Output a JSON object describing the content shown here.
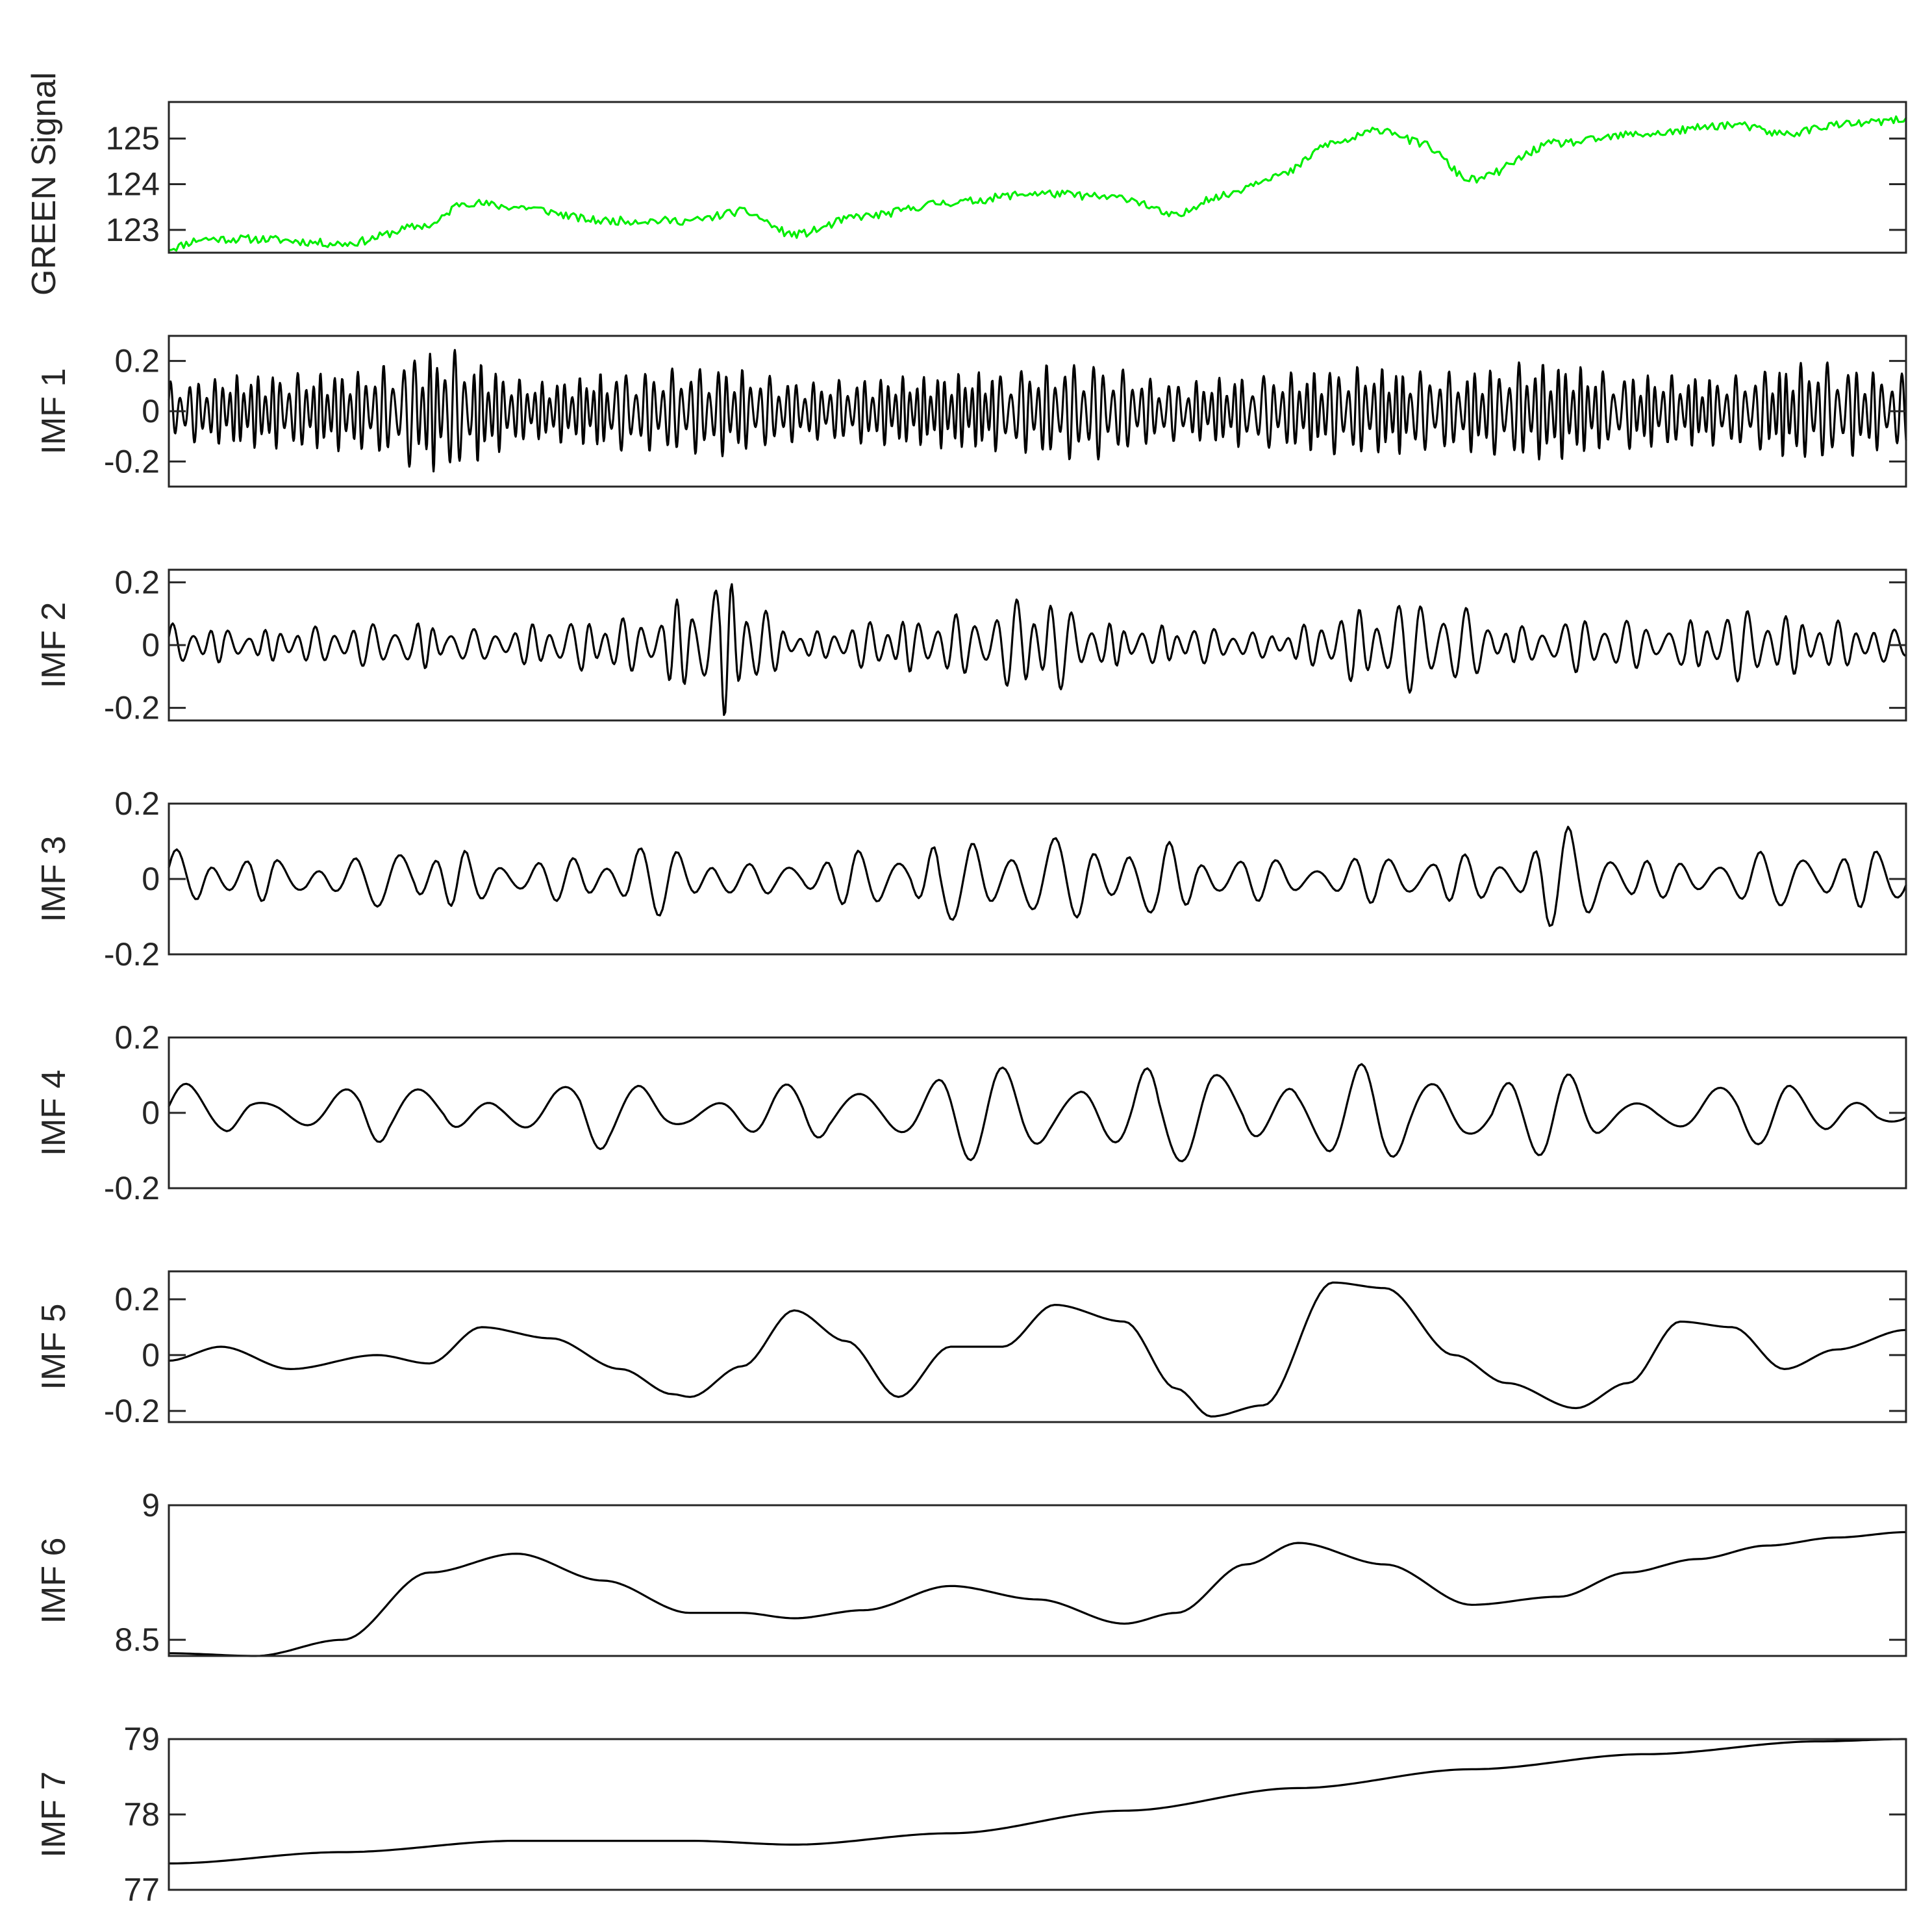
{
  "chart_data": [
    {
      "type": "line",
      "ylabel": "GREEN Signal",
      "ylim": [
        122.5,
        125.8
      ],
      "yticks": [
        123,
        124,
        125
      ],
      "ytick_labels": [
        "123",
        "124",
        "125"
      ],
      "x": [
        0,
        0.02,
        0.05,
        0.1,
        0.15,
        0.17,
        0.2,
        0.25,
        0.3,
        0.33,
        0.36,
        0.4,
        0.45,
        0.5,
        0.55,
        0.58,
        0.6,
        0.64,
        0.67,
        0.7,
        0.72,
        0.75,
        0.8,
        0.85,
        0.9,
        0.93,
        0.96,
        1
      ],
      "values": [
        122.6,
        122.8,
        122.8,
        122.7,
        123.1,
        123.6,
        123.5,
        123.2,
        123.2,
        123.4,
        122.9,
        123.3,
        123.6,
        123.8,
        123.7,
        123.3,
        123.7,
        124.2,
        124.9,
        125.2,
        124.9,
        124.1,
        124.9,
        125.1,
        125.3,
        125.1,
        125.3,
        125.4
      ],
      "color": "#00ee00",
      "noise": 0.18,
      "seed": 11
    },
    {
      "type": "line",
      "ylabel": "IMF 1",
      "ylim": [
        -0.3,
        0.3
      ],
      "yticks": [
        -0.2,
        0,
        0.2
      ],
      "ytick_labels": [
        "-0.2",
        "0",
        "0.2"
      ],
      "description_mode": "oscillation",
      "cycles": 210,
      "amplitude_envelope": [
        0.12,
        0.15,
        0.16,
        0.25,
        0.12,
        0.16,
        0.18,
        0.12,
        0.14,
        0.16,
        0.2,
        0.12,
        0.15,
        0.18,
        0.16,
        0.2,
        0.15,
        0.14,
        0.2,
        0.15
      ],
      "color": "#000000",
      "seed": 3
    },
    {
      "type": "line",
      "ylabel": "IMF 2",
      "ylim": [
        -0.24,
        0.24
      ],
      "yticks": [
        -0.2,
        0,
        0.2
      ],
      "ytick_labels": [
        "-0.2",
        "0",
        "0.2"
      ],
      "description_mode": "oscillation",
      "cycles": 95,
      "amplitude_envelope": [
        0.07,
        0.05,
        0.06,
        0.08,
        0.05,
        0.08,
        0.09,
        0.23,
        0.04,
        0.08,
        0.1,
        0.16,
        0.07,
        0.06,
        0.04,
        0.12,
        0.16,
        0.06,
        0.09,
        0.07,
        0.12,
        0.08,
        0.05
      ],
      "color": "#000000",
      "seed": 5
    },
    {
      "type": "line",
      "ylabel": "IMF 3",
      "ylim": [
        -0.2,
        0.2
      ],
      "yticks": [
        -0.2,
        0,
        0.2
      ],
      "ytick_labels": [
        "-0.2",
        "0",
        "0.2"
      ],
      "description_mode": "oscillation",
      "cycles": 47,
      "amplitude_envelope": [
        0.08,
        0.06,
        0.05,
        0.1,
        0.06,
        0.06,
        0.1,
        0.04,
        0.07,
        0.1,
        0.12,
        0.11,
        0.1,
        0.06,
        0.05,
        0.08,
        0.06,
        0.15,
        0.05,
        0.07,
        0.09,
        0.07
      ],
      "color": "#000000",
      "seed": 7
    },
    {
      "type": "line",
      "ylabel": "IMF 4",
      "ylim": [
        -0.2,
        0.2
      ],
      "yticks": [
        -0.2,
        0,
        0.2
      ],
      "ytick_labels": [
        "-0.2",
        "0",
        "0.2"
      ],
      "description_mode": "oscillation",
      "cycles": 24,
      "amplitude_envelope": [
        0.08,
        0.06,
        0.08,
        0.07,
        0.06,
        0.11,
        0.05,
        0.08,
        0.12,
        0.13,
        0.14,
        0.13,
        0.14,
        0.13,
        0.14,
        0.12,
        0.06,
        0.08,
        0.09,
        0.03
      ],
      "color": "#000000",
      "seed": 9
    },
    {
      "type": "line",
      "ylabel": "IMF 5",
      "ylim": [
        -0.24,
        0.3
      ],
      "yticks": [
        -0.2,
        0,
        0.2
      ],
      "ytick_labels": [
        "-0.2",
        "0",
        "0.2"
      ],
      "x": [
        0,
        0.03,
        0.07,
        0.12,
        0.15,
        0.18,
        0.22,
        0.26,
        0.29,
        0.3,
        0.33,
        0.36,
        0.39,
        0.42,
        0.45,
        0.48,
        0.51,
        0.55,
        0.58,
        0.6,
        0.63,
        0.67,
        0.7,
        0.74,
        0.77,
        0.81,
        0.84,
        0.87,
        0.9,
        0.93,
        0.96,
        1
      ],
      "values": [
        -0.02,
        0.03,
        -0.05,
        0.0,
        -0.03,
        0.1,
        0.06,
        -0.05,
        -0.14,
        -0.15,
        -0.04,
        0.16,
        0.05,
        -0.15,
        0.03,
        0.03,
        0.18,
        0.12,
        -0.12,
        -0.22,
        -0.18,
        0.26,
        0.24,
        0.0,
        -0.1,
        -0.19,
        -0.1,
        0.12,
        0.1,
        -0.05,
        0.02,
        0.09
      ],
      "color": "#000000"
    },
    {
      "type": "line",
      "ylabel": "IMF 6",
      "ylim": [
        8.44,
        9.0
      ],
      "yticks": [
        8.5,
        9
      ],
      "ytick_labels": [
        "8.5",
        "9"
      ],
      "x": [
        0,
        0.05,
        0.1,
        0.15,
        0.2,
        0.25,
        0.3,
        0.33,
        0.36,
        0.4,
        0.45,
        0.5,
        0.55,
        0.58,
        0.62,
        0.65,
        0.7,
        0.75,
        0.8,
        0.84,
        0.88,
        0.92,
        0.96,
        1
      ],
      "values": [
        8.45,
        8.44,
        8.5,
        8.75,
        8.82,
        8.72,
        8.6,
        8.6,
        8.58,
        8.61,
        8.7,
        8.65,
        8.56,
        8.6,
        8.78,
        8.86,
        8.78,
        8.63,
        8.66,
        8.75,
        8.8,
        8.85,
        8.88,
        8.9
      ],
      "color": "#000000"
    },
    {
      "type": "line",
      "ylabel": "IMF 7",
      "ylim": [
        77,
        79
      ],
      "yticks": [
        77,
        78,
        79
      ],
      "ytick_labels": [
        "77",
        "78",
        "79"
      ],
      "x": [
        0,
        0.1,
        0.2,
        0.3,
        0.36,
        0.45,
        0.55,
        0.65,
        0.75,
        0.85,
        0.95,
        1
      ],
      "values": [
        77.35,
        77.5,
        77.65,
        77.65,
        77.6,
        77.75,
        78.05,
        78.35,
        78.6,
        78.8,
        78.97,
        79
      ],
      "color": "#000000"
    }
  ]
}
